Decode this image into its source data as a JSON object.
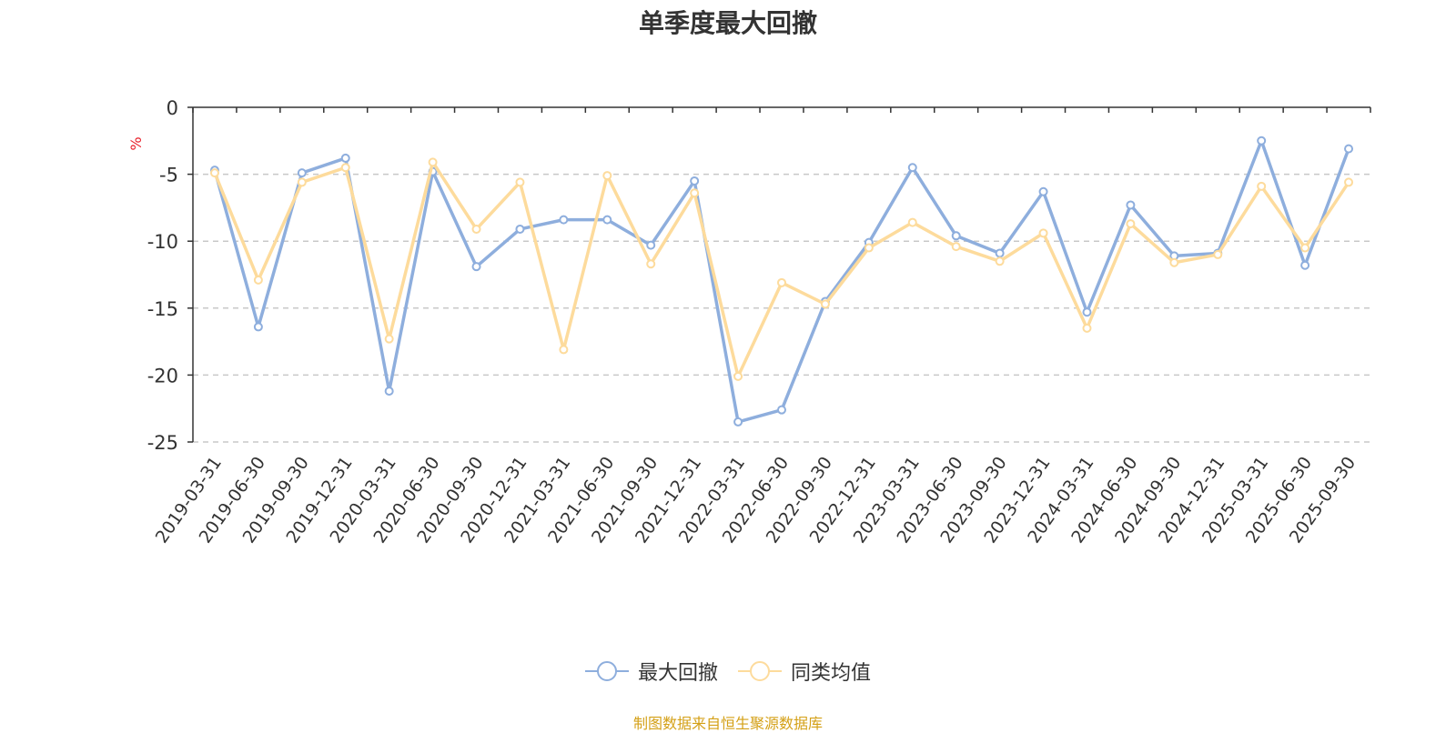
{
  "chart_data": {
    "type": "line",
    "title": "单季度最大回撤",
    "ylabel": "%",
    "ylim": [
      -25,
      0
    ],
    "yticks": [
      0,
      -5,
      -10,
      -15,
      -20,
      -25
    ],
    "grid": true,
    "legend_position": "bottom",
    "categories": [
      "2019-03-31",
      "2019-06-30",
      "2019-09-30",
      "2019-12-31",
      "2020-03-31",
      "2020-06-30",
      "2020-09-30",
      "2020-12-31",
      "2021-03-31",
      "2021-06-30",
      "2021-09-30",
      "2021-12-31",
      "2022-03-31",
      "2022-06-30",
      "2022-09-30",
      "2022-12-31",
      "2023-03-31",
      "2023-06-30",
      "2023-09-30",
      "2023-12-31",
      "2024-03-31",
      "2024-06-30",
      "2024-09-30",
      "2024-12-31",
      "2025-03-31",
      "2025-06-30",
      "2025-09-30"
    ],
    "series": [
      {
        "name": "最大回撤",
        "color": "#8eaedd",
        "values": [
          -4.7,
          -16.4,
          -4.9,
          -3.8,
          -21.2,
          -4.8,
          -11.9,
          -9.1,
          -8.4,
          -8.4,
          -10.3,
          -5.5,
          -23.5,
          -22.6,
          -14.5,
          -10.1,
          -4.5,
          -9.6,
          -10.9,
          -6.3,
          -15.3,
          -7.3,
          -11.1,
          -10.9,
          -2.5,
          -11.8,
          -3.1
        ]
      },
      {
        "name": "同类均值",
        "color": "#fddb9c",
        "values": [
          -4.9,
          -12.9,
          -5.6,
          -4.5,
          -17.3,
          -4.1,
          -9.1,
          -5.6,
          -18.1,
          -5.1,
          -11.7,
          -6.4,
          -20.1,
          -13.1,
          -14.7,
          -10.5,
          -8.6,
          -10.4,
          -11.5,
          -9.4,
          -16.5,
          -8.7,
          -11.6,
          -11.0,
          -5.9,
          -10.5,
          -5.6
        ]
      }
    ]
  },
  "source_note": "制图数据来自恒生聚源数据库"
}
